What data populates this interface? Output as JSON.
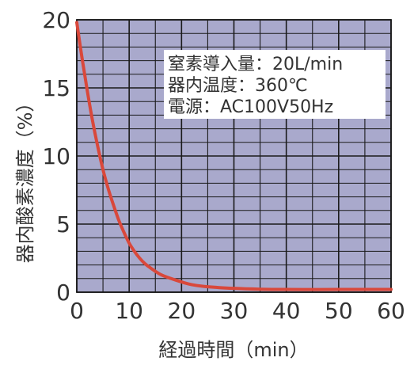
{
  "chart_data": {
    "type": "line",
    "xlabel": "経過時間（min）",
    "ylabel": "器内酸素濃度（%）",
    "xlim": [
      0,
      60
    ],
    "ylim": [
      0,
      20
    ],
    "x_ticks": [
      "0",
      "10",
      "20",
      "30",
      "40",
      "50",
      "60"
    ],
    "y_ticks": [
      "0",
      "5",
      "10",
      "15",
      "20"
    ],
    "grid": true,
    "annotations": [
      "窒素導入量：20L/min",
      "器内温度：360℃",
      "電源：AC100V50Hz"
    ],
    "series": [
      {
        "x": [
          0,
          1,
          2,
          3,
          4,
          5,
          6,
          7,
          8,
          9,
          10,
          11,
          12,
          13,
          14,
          16,
          18,
          20,
          22,
          25,
          30,
          35,
          40,
          50,
          60
        ],
        "y": [
          19.8,
          17.2,
          14.8,
          12.6,
          10.7,
          9.0,
          7.6,
          6.4,
          5.3,
          4.4,
          3.6,
          3.0,
          2.5,
          2.1,
          1.8,
          1.3,
          1.0,
          0.75,
          0.55,
          0.4,
          0.28,
          0.22,
          0.2,
          0.2,
          0.2
        ]
      }
    ]
  },
  "colors": {
    "plot_bg": "#a9a9cc",
    "grid": "#1a1a1a",
    "line": "#d9483b",
    "note_bg": "#ffffff"
  }
}
